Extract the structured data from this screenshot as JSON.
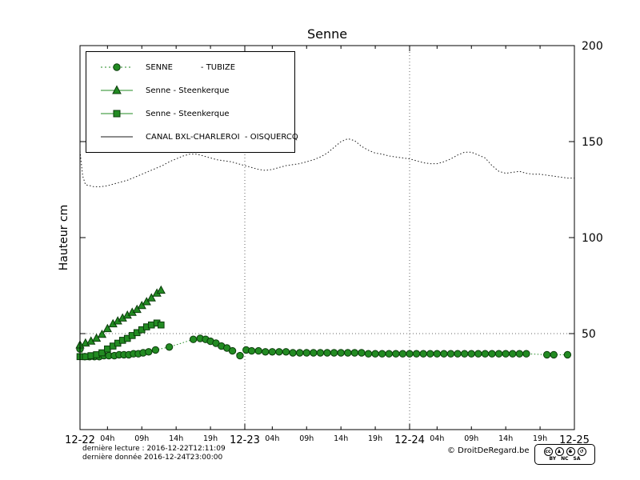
{
  "chart_data": {
    "type": "line",
    "title": "Senne",
    "ylabel": "Hauteur cm",
    "xlim": [
      0,
      72
    ],
    "ylim": [
      0,
      200
    ],
    "x_day_ticks": [
      {
        "h": 0,
        "label": "12-22"
      },
      {
        "h": 24,
        "label": "12-23"
      },
      {
        "h": 48,
        "label": "12-24"
      },
      {
        "h": 72,
        "label": "12-25"
      }
    ],
    "x_hour_ticks": [
      {
        "h": 4,
        "label": "04h"
      },
      {
        "h": 9,
        "label": "09h"
      },
      {
        "h": 14,
        "label": "14h"
      },
      {
        "h": 19,
        "label": "19h"
      },
      {
        "h": 28,
        "label": "04h"
      },
      {
        "h": 33,
        "label": "09h"
      },
      {
        "h": 38,
        "label": "14h"
      },
      {
        "h": 43,
        "label": "19h"
      },
      {
        "h": 52,
        "label": "04h"
      },
      {
        "h": 57,
        "label": "09h"
      },
      {
        "h": 62,
        "label": "14h"
      },
      {
        "h": 67,
        "label": "19h"
      }
    ],
    "y_ticks": [
      {
        "v": 50,
        "label": "50"
      },
      {
        "v": 100,
        "label": "100"
      },
      {
        "v": 150,
        "label": "150"
      },
      {
        "v": 200,
        "label": "200"
      }
    ],
    "grid": {
      "h_values": [
        50
      ],
      "v_hours": [
        24,
        48
      ]
    },
    "series": [
      {
        "id": "canal-line",
        "name": "CANAL BXL-CHARLEROI - OISQUERCQ",
        "marker": "none",
        "line": "dotted",
        "color": "#1a1a1a",
        "edge": "#1a1a1a",
        "points": [
          [
            0,
            145
          ],
          [
            0.4,
            132
          ],
          [
            0.8,
            127.5
          ],
          [
            1.5,
            127
          ],
          [
            2,
            126.5
          ],
          [
            3,
            126.5
          ],
          [
            4,
            127
          ],
          [
            5,
            128
          ],
          [
            6,
            129
          ],
          [
            7,
            130
          ],
          [
            8,
            131.5
          ],
          [
            9,
            133
          ],
          [
            10,
            134.5
          ],
          [
            11,
            136
          ],
          [
            12,
            137.5
          ],
          [
            13,
            139.5
          ],
          [
            14,
            141
          ],
          [
            15,
            142.5
          ],
          [
            16,
            143.5
          ],
          [
            17,
            143.5
          ],
          [
            18,
            142.5
          ],
          [
            19,
            141.5
          ],
          [
            20,
            140.5
          ],
          [
            21,
            140
          ],
          [
            22,
            139.5
          ],
          [
            23,
            138.5
          ],
          [
            24,
            137.5
          ],
          [
            25,
            136.5
          ],
          [
            26,
            135.5
          ],
          [
            27,
            135
          ],
          [
            28,
            135.5
          ],
          [
            29,
            136.5
          ],
          [
            30,
            137.5
          ],
          [
            31,
            138
          ],
          [
            32,
            138.5
          ],
          [
            33,
            139.5
          ],
          [
            34,
            140.5
          ],
          [
            35,
            142
          ],
          [
            36,
            144
          ],
          [
            37,
            147
          ],
          [
            38,
            150
          ],
          [
            39,
            151.5
          ],
          [
            40,
            150.5
          ],
          [
            41,
            147.5
          ],
          [
            42,
            145.5
          ],
          [
            43,
            144
          ],
          [
            44,
            143.5
          ],
          [
            45,
            142.5
          ],
          [
            46,
            142
          ],
          [
            47,
            141.5
          ],
          [
            48,
            141
          ],
          [
            49,
            140
          ],
          [
            50,
            139
          ],
          [
            51,
            138.5
          ],
          [
            52,
            138.5
          ],
          [
            53,
            139.5
          ],
          [
            54,
            141
          ],
          [
            55,
            143
          ],
          [
            56,
            144.5
          ],
          [
            57,
            144.5
          ],
          [
            58,
            143
          ],
          [
            59,
            141.5
          ],
          [
            60,
            137.5
          ],
          [
            61,
            134.5
          ],
          [
            62,
            133.5
          ],
          [
            63,
            134
          ],
          [
            64,
            134.5
          ],
          [
            65,
            133.5
          ],
          [
            66,
            133
          ],
          [
            67,
            133
          ],
          [
            68,
            132.5
          ],
          [
            69,
            132
          ],
          [
            70,
            131.5
          ],
          [
            71,
            131
          ],
          [
            72,
            131
          ]
        ]
      },
      {
        "id": "tubize-circles",
        "name": "SENNE - TUBIZE",
        "marker": "circle",
        "line": "dotted",
        "color": "#228b22",
        "edge": "#0b3d0b",
        "points": [
          [
            0,
            42
          ],
          [
            0.7,
            38
          ],
          [
            1.4,
            38
          ],
          [
            2.1,
            38
          ],
          [
            2.8,
            38
          ],
          [
            3.5,
            38.5
          ],
          [
            4.2,
            38.5
          ],
          [
            5,
            38.5
          ],
          [
            5.7,
            39
          ],
          [
            6.4,
            39
          ],
          [
            7.1,
            39
          ],
          [
            7.8,
            39.5
          ],
          [
            8.5,
            39.5
          ],
          [
            9.2,
            40
          ],
          [
            10,
            40.5
          ],
          [
            11,
            41.5
          ],
          [
            13,
            43
          ],
          [
            16.5,
            47
          ],
          [
            17.5,
            47.5
          ],
          [
            18.3,
            47
          ],
          [
            19,
            46
          ],
          [
            19.8,
            45
          ],
          [
            20.6,
            43.5
          ],
          [
            21.4,
            42.5
          ],
          [
            22.2,
            41
          ],
          [
            23.3,
            38.5
          ],
          [
            24.2,
            41.5
          ],
          [
            25,
            41
          ],
          [
            26,
            41
          ],
          [
            27,
            40.5
          ],
          [
            28,
            40.5
          ],
          [
            29,
            40.5
          ],
          [
            30,
            40.5
          ],
          [
            31,
            40
          ],
          [
            32,
            40
          ],
          [
            33,
            40
          ],
          [
            34,
            40
          ],
          [
            35,
            40
          ],
          [
            36,
            40
          ],
          [
            37,
            40
          ],
          [
            38,
            40
          ],
          [
            39,
            40
          ],
          [
            40,
            40
          ],
          [
            41,
            40
          ],
          [
            42,
            39.5
          ],
          [
            43,
            39.5
          ],
          [
            44,
            39.5
          ],
          [
            45,
            39.5
          ],
          [
            46,
            39.5
          ],
          [
            47,
            39.5
          ],
          [
            48,
            39.5
          ],
          [
            49,
            39.5
          ],
          [
            50,
            39.5
          ],
          [
            51,
            39.5
          ],
          [
            52,
            39.5
          ],
          [
            53,
            39.5
          ],
          [
            54,
            39.5
          ],
          [
            55,
            39.5
          ],
          [
            56,
            39.5
          ],
          [
            57,
            39.5
          ],
          [
            58,
            39.5
          ],
          [
            59,
            39.5
          ],
          [
            60,
            39.5
          ],
          [
            61,
            39.5
          ],
          [
            62,
            39.5
          ],
          [
            63,
            39.5
          ],
          [
            64,
            39.5
          ],
          [
            65,
            39.5
          ],
          [
            68,
            39
          ],
          [
            69,
            39
          ],
          [
            71,
            39
          ]
        ]
      },
      {
        "id": "steenkerque-triangles",
        "name": "Senne - Steenkerque",
        "marker": "triangle",
        "line": "solid",
        "color": "#228b22",
        "edge": "#0b3d0b",
        "points": [
          [
            0,
            44
          ],
          [
            0.8,
            45
          ],
          [
            1.6,
            46
          ],
          [
            2.4,
            47.5
          ],
          [
            3.2,
            49.5
          ],
          [
            4,
            52.5
          ],
          [
            4.8,
            55
          ],
          [
            5.5,
            56.5
          ],
          [
            6.2,
            58
          ],
          [
            6.9,
            59.5
          ],
          [
            7.6,
            61
          ],
          [
            8.3,
            62.5
          ],
          [
            9,
            64.5
          ],
          [
            9.7,
            66.5
          ],
          [
            10.4,
            68.5
          ],
          [
            11.2,
            71
          ],
          [
            11.8,
            72.5
          ]
        ]
      },
      {
        "id": "steenkerque-squares",
        "name": "Senne - Steenkerque",
        "marker": "square",
        "line": "solid",
        "color": "#228b22",
        "edge": "#0b3d0b",
        "points": [
          [
            0,
            38
          ],
          [
            0.8,
            38
          ],
          [
            1.6,
            38.5
          ],
          [
            2.4,
            39
          ],
          [
            3.2,
            40
          ],
          [
            4,
            42
          ],
          [
            4.8,
            43.5
          ],
          [
            5.5,
            45
          ],
          [
            6.2,
            46.5
          ],
          [
            6.9,
            47.5
          ],
          [
            7.6,
            49
          ],
          [
            8.3,
            50.5
          ],
          [
            9,
            52
          ],
          [
            9.7,
            53.5
          ],
          [
            10.4,
            54.5
          ],
          [
            11.2,
            55.5
          ],
          [
            11.8,
            54.5
          ]
        ]
      }
    ]
  },
  "legend": {
    "items": [
      {
        "label": "SENNE           - TUBIZE"
      },
      {
        "label": "Senne - Steenkerque"
      },
      {
        "label": "Senne - Steenkerque"
      },
      {
        "label": "CANAL BXL-CHARLEROI  - OISQUERCQ"
      }
    ]
  },
  "footer": {
    "last_reading": "dernière lecture : 2016-12-22T12:11:09",
    "last_data": "dernière donnée  2016-12-24T23:00:00",
    "copyright": "© DroitDeRegard.be",
    "license_badges": [
      "BY",
      "NC",
      "SA"
    ]
  },
  "colors": {
    "series_green": "#228b22",
    "series_black": "#1a1a1a"
  }
}
